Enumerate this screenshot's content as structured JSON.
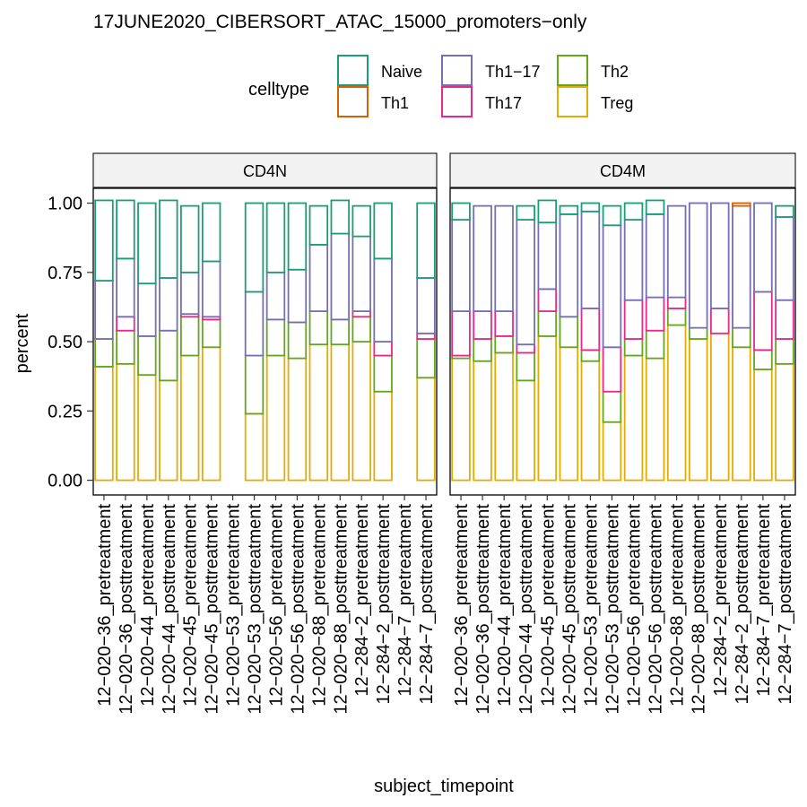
{
  "chart_data": {
    "type": "bar",
    "title": "17JUNE2020_CIBERSORT_ATAC_15000_promoters−only",
    "xlabel": "subject_timepoint",
    "ylabel": "percent",
    "ylim": [
      0,
      1.0
    ],
    "yticks": [
      "0.00",
      "0.25",
      "0.50",
      "0.75",
      "1.00"
    ],
    "legend": {
      "title": "celltype",
      "position": "top",
      "entries": [
        {
          "name": "Naive",
          "color": "#1b9e77"
        },
        {
          "name": "Th1",
          "color": "#d95f02"
        },
        {
          "name": "Th1−17",
          "color": "#7570b3"
        },
        {
          "name": "Th17",
          "color": "#e7298a"
        },
        {
          "name": "Th2",
          "color": "#66a61e"
        },
        {
          "name": "Treg",
          "color": "#e6ab02"
        }
      ]
    },
    "stack_order_bottom_to_top": [
      "Treg",
      "Th2",
      "Th17",
      "Th1−17",
      "Th1",
      "Naive"
    ],
    "categories": [
      "12−020−36_pretreatment",
      "12−020−36_posttreatment",
      "12−020−44_pretreatment",
      "12−020−44_posttreatment",
      "12−020−45_pretreatment",
      "12−020−45_posttreatment",
      "12−020−53_pretreatment",
      "12−020−53_posttreatment",
      "12−020−56_pretreatment",
      "12−020−56_posttreatment",
      "12−020−88_pretreatment",
      "12−020−88_posttreatment",
      "12−284−2_pretreatment",
      "12−284−2_posttreatment",
      "12−284−7_pretreatment",
      "12−284−7_posttreatment"
    ],
    "panels": [
      {
        "strip": "CD4N",
        "bars": [
          {
            "Treg": 0.41,
            "Th2": 0.1,
            "Th17": 0.0,
            "Th1−17": 0.21,
            "Th1": 0.0,
            "Naive": 0.29
          },
          {
            "Treg": 0.42,
            "Th2": 0.12,
            "Th17": 0.05,
            "Th1−17": 0.21,
            "Th1": 0.0,
            "Naive": 0.21
          },
          {
            "Treg": 0.38,
            "Th2": 0.14,
            "Th17": 0.0,
            "Th1−17": 0.19,
            "Th1": 0.0,
            "Naive": 0.29
          },
          {
            "Treg": 0.36,
            "Th2": 0.18,
            "Th17": 0.0,
            "Th1−17": 0.19,
            "Th1": 0.0,
            "Naive": 0.28
          },
          {
            "Treg": 0.45,
            "Th2": 0.14,
            "Th17": 0.01,
            "Th1−17": 0.15,
            "Th1": 0.0,
            "Naive": 0.24
          },
          {
            "Treg": 0.48,
            "Th2": 0.1,
            "Th17": 0.01,
            "Th1−17": 0.2,
            "Th1": 0.0,
            "Naive": 0.21
          },
          null,
          {
            "Treg": 0.24,
            "Th2": 0.21,
            "Th17": 0.0,
            "Th1−17": 0.23,
            "Th1": 0.0,
            "Naive": 0.32
          },
          {
            "Treg": 0.45,
            "Th2": 0.13,
            "Th17": 0.0,
            "Th1−17": 0.17,
            "Th1": 0.0,
            "Naive": 0.25
          },
          {
            "Treg": 0.44,
            "Th2": 0.13,
            "Th17": 0.0,
            "Th1−17": 0.19,
            "Th1": 0.0,
            "Naive": 0.24
          },
          {
            "Treg": 0.49,
            "Th2": 0.12,
            "Th17": 0.0,
            "Th1−17": 0.24,
            "Th1": 0.0,
            "Naive": 0.14
          },
          {
            "Treg": 0.49,
            "Th2": 0.09,
            "Th17": 0.0,
            "Th1−17": 0.31,
            "Th1": 0.0,
            "Naive": 0.12
          },
          {
            "Treg": 0.5,
            "Th2": 0.09,
            "Th17": 0.02,
            "Th1−17": 0.27,
            "Th1": 0.0,
            "Naive": 0.11
          },
          {
            "Treg": 0.32,
            "Th2": 0.13,
            "Th17": 0.05,
            "Th1−17": 0.3,
            "Th1": 0.0,
            "Naive": 0.2
          },
          null,
          {
            "Treg": 0.37,
            "Th2": 0.14,
            "Th17": 0.02,
            "Th1−17": 0.2,
            "Th1": 0.0,
            "Naive": 0.27
          }
        ]
      },
      {
        "strip": "CD4M",
        "bars": [
          {
            "Treg": 0.44,
            "Th2": 0.01,
            "Th17": 0.16,
            "Th1−17": 0.33,
            "Th1": 0.0,
            "Naive": 0.06
          },
          {
            "Treg": 0.43,
            "Th2": 0.08,
            "Th17": 0.1,
            "Th1−17": 0.38,
            "Th1": 0.0,
            "Naive": 0.0
          },
          {
            "Treg": 0.46,
            "Th2": 0.06,
            "Th17": 0.09,
            "Th1−17": 0.38,
            "Th1": 0.0,
            "Naive": 0.0
          },
          {
            "Treg": 0.36,
            "Th2": 0.1,
            "Th17": 0.03,
            "Th1−17": 0.45,
            "Th1": 0.0,
            "Naive": 0.05
          },
          {
            "Treg": 0.52,
            "Th2": 0.09,
            "Th17": 0.08,
            "Th1−17": 0.24,
            "Th1": 0.0,
            "Naive": 0.08
          },
          {
            "Treg": 0.48,
            "Th2": 0.11,
            "Th17": 0.0,
            "Th1−17": 0.37,
            "Th1": 0.0,
            "Naive": 0.03
          },
          {
            "Treg": 0.43,
            "Th2": 0.04,
            "Th17": 0.15,
            "Th1−17": 0.35,
            "Th1": 0.0,
            "Naive": 0.03
          },
          {
            "Treg": 0.21,
            "Th2": 0.11,
            "Th17": 0.16,
            "Th1−17": 0.44,
            "Th1": 0.0,
            "Naive": 0.07
          },
          {
            "Treg": 0.45,
            "Th2": 0.06,
            "Th17": 0.14,
            "Th1−17": 0.29,
            "Th1": 0.0,
            "Naive": 0.06
          },
          {
            "Treg": 0.44,
            "Th2": 0.1,
            "Th17": 0.12,
            "Th1−17": 0.3,
            "Th1": 0.0,
            "Naive": 0.05
          },
          {
            "Treg": 0.56,
            "Th2": 0.06,
            "Th17": 0.04,
            "Th1−17": 0.33,
            "Th1": 0.0,
            "Naive": 0.0
          },
          {
            "Treg": 0.51,
            "Th2": 0.04,
            "Th17": 0.0,
            "Th1−17": 0.45,
            "Th1": 0.0,
            "Naive": 0.0
          },
          {
            "Treg": 0.53,
            "Th2": 0.0,
            "Th17": 0.09,
            "Th1−17": 0.38,
            "Th1": 0.0,
            "Naive": 0.0
          },
          {
            "Treg": 0.48,
            "Th2": 0.07,
            "Th17": 0.0,
            "Th1−17": 0.44,
            "Th1": 0.01,
            "Naive": 0.0
          },
          {
            "Treg": 0.4,
            "Th2": 0.07,
            "Th17": 0.21,
            "Th1−17": 0.32,
            "Th1": 0.0,
            "Naive": 0.0
          },
          {
            "Treg": 0.42,
            "Th2": 0.09,
            "Th17": 0.14,
            "Th1−17": 0.3,
            "Th1": 0.0,
            "Naive": 0.04
          }
        ]
      }
    ]
  }
}
